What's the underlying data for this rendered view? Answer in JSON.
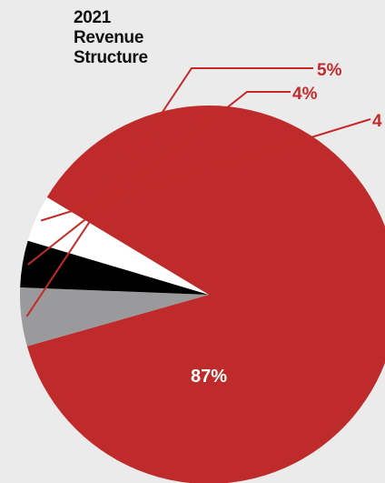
{
  "chart_data": {
    "type": "pie",
    "title_lines": [
      "2021",
      "Revenue",
      "Structure"
    ],
    "legend": "none",
    "slices": [
      {
        "value": 87,
        "label": "87%",
        "color": "#bf2b2b",
        "label_color": "#ffffff",
        "label_position": "inside"
      },
      {
        "value": 5,
        "label": "5%",
        "color": "#9a9a9c",
        "label_color": "#c42a2a",
        "label_position": "callout"
      },
      {
        "value": 4,
        "label": "4%",
        "color": "#000000",
        "label_color": "#c42a2a",
        "label_position": "callout"
      },
      {
        "value": 4,
        "label": "4",
        "color": "#ffffff",
        "label_color": "#c42a2a",
        "label_position": "callout"
      }
    ]
  }
}
